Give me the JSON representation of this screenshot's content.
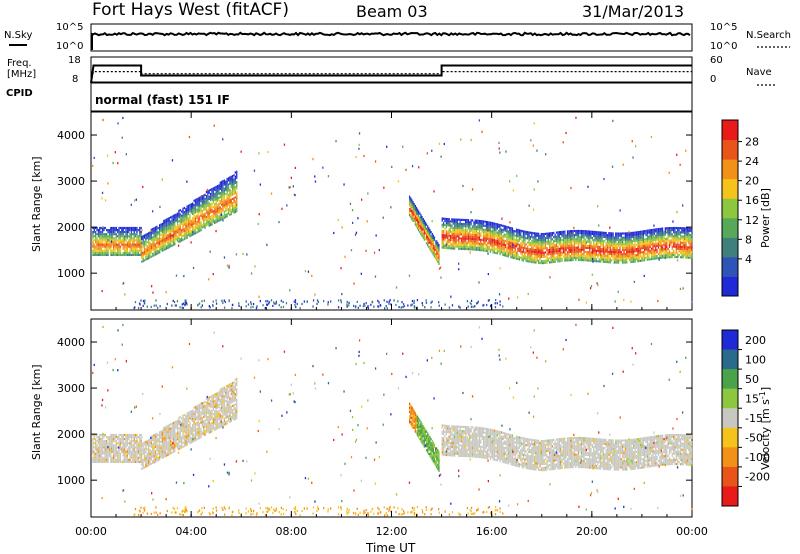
{
  "header": {
    "station": "Fort Hays West (fitACF)",
    "beam": "Beam 03",
    "date": "31/Mar/2013"
  },
  "top_panels": {
    "nsky_label": "N.Sky",
    "nsky_ticks": [
      "10^5",
      "10^0"
    ],
    "nsearch_label": "N.Search",
    "freq_label_1": "Freq.",
    "freq_label_2": "[MHz]",
    "freq_ticks": [
      "18",
      "8"
    ],
    "nave_label": "Nave",
    "nave_ticks": [
      "60",
      "0"
    ],
    "cpid_label": "CPID",
    "cpid_value": "normal (fast) 151 IF"
  },
  "chart_data": [
    {
      "type": "line",
      "panel": "frequency-nave",
      "x_unit": "hours UT",
      "series": [
        {
          "name": "Freq.",
          "x": [
            0.0,
            0.1,
            2.0,
            2.0,
            14.0,
            14.0,
            24.0
          ],
          "values": [
            8,
            15,
            15,
            11,
            11,
            15,
            15
          ]
        },
        {
          "name": "Nave",
          "x": [
            0.0,
            0.1,
            2.0,
            2.0,
            14.0,
            14.0,
            24.0
          ],
          "values": [
            0,
            25,
            25,
            20,
            20,
            25,
            25
          ]
        }
      ]
    },
    {
      "type": "heatmap",
      "panel": "power",
      "ylabel": "Slant Range [km]",
      "xlabel": "",
      "yticks": [
        "1000",
        "2000",
        "3000",
        "4000"
      ],
      "ylim": [
        200,
        4500
      ],
      "colorbar": {
        "label": "Power [dB]",
        "ticks": [
          "4",
          "8",
          "12",
          "16",
          "20",
          "24",
          "28"
        ],
        "colors": [
          "#1f2ad6",
          "#2d55b8",
          "#3f7f7d",
          "#58a85a",
          "#8dc63f",
          "#f5c31b",
          "#f39018",
          "#e8541a",
          "#e81a1a"
        ]
      },
      "features": [
        {
          "time_start": 0.0,
          "time_end": 2.0,
          "range_start": 1500,
          "range_end": 1650,
          "peak_db": 22
        },
        {
          "time_start": 2.0,
          "time_end": 5.8,
          "range_start": 1350,
          "range_end": 2900,
          "peak_db": 24
        },
        {
          "time_start": 12.7,
          "time_end": 13.9,
          "range_start": 2600,
          "range_end": 1300,
          "peak_db": 26
        },
        {
          "time_start": 14.0,
          "time_end": 24.0,
          "range_start": 1900,
          "range_end": 1450,
          "peak_db": 25
        }
      ]
    },
    {
      "type": "heatmap",
      "panel": "velocity",
      "ylabel": "Slant Range [km]",
      "xlabel": "Time UT",
      "xticks": [
        "00:00",
        "04:00",
        "08:00",
        "12:00",
        "16:00",
        "20:00",
        "00:00"
      ],
      "yticks": [
        "1000",
        "2000",
        "3000",
        "4000"
      ],
      "ylim": [
        200,
        4500
      ],
      "colorbar": {
        "label": "Velocity [m s^-1]",
        "ticks": [
          "200",
          "100",
          "50",
          "15",
          "-15",
          "-50",
          "-100",
          "-200"
        ],
        "colors": [
          "#1f2ad6",
          "#2a6a8c",
          "#4aa24a",
          "#8dc63f",
          "#c8c8c0",
          "#f5c31b",
          "#f39018",
          "#e8541a",
          "#e81a1a"
        ]
      }
    }
  ]
}
